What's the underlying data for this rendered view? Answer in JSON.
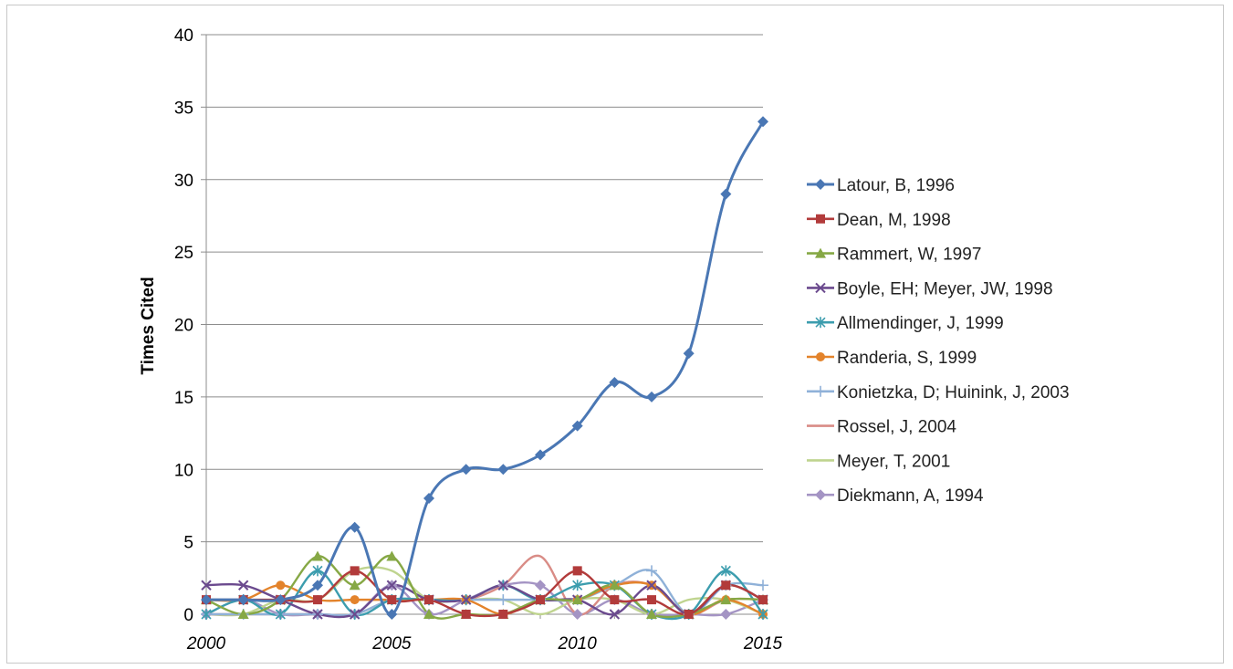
{
  "chart_data": {
    "type": "line",
    "title": "",
    "xlabel": "",
    "ylabel": "Times Cited",
    "x": [
      2000,
      2001,
      2002,
      2003,
      2004,
      2005,
      2006,
      2007,
      2008,
      2009,
      2010,
      2011,
      2012,
      2013,
      2014,
      2015
    ],
    "xlim": [
      2000,
      2015
    ],
    "ylim": [
      0,
      40
    ],
    "x_ticks": [
      "2000",
      "2005",
      "2010",
      "2015"
    ],
    "y_ticks": [
      "0",
      "5",
      "10",
      "15",
      "20",
      "25",
      "30",
      "35",
      "40"
    ],
    "grid": "horizontal",
    "legend_position": "right",
    "series": [
      {
        "name": "Latour, B, 1996",
        "color": "#4a77b4",
        "marker": "diamond",
        "values": [
          1,
          1,
          1,
          2,
          6,
          0,
          8,
          10,
          10,
          11,
          13,
          16,
          15,
          18,
          29,
          34
        ]
      },
      {
        "name": "Dean, M, 1998",
        "color": "#b23b3b",
        "marker": "square",
        "values": [
          1,
          1,
          1,
          1,
          3,
          1,
          1,
          0,
          0,
          1,
          3,
          1,
          1,
          0,
          2,
          1
        ]
      },
      {
        "name": "Rammert, W, 1997",
        "color": "#86a845",
        "marker": "triangle",
        "values": [
          1,
          0,
          1,
          4,
          2,
          4,
          0,
          0,
          0,
          1,
          1,
          2,
          0,
          0,
          1,
          1
        ]
      },
      {
        "name": "Boyle, EH; Meyer, JW, 1998",
        "color": "#6b4a8e",
        "marker": "x",
        "values": [
          2,
          2,
          1,
          0,
          0,
          2,
          1,
          1,
          2,
          1,
          1,
          0,
          2,
          0,
          2,
          1
        ]
      },
      {
        "name": "Allmendinger, J, 1999",
        "color": "#3c9dae",
        "marker": "star",
        "values": [
          0,
          1,
          0,
          3,
          0,
          1,
          1,
          1,
          2,
          1,
          2,
          2,
          0,
          0,
          3,
          0
        ]
      },
      {
        "name": "Randeria, S, 1999",
        "color": "#e3832b",
        "marker": "circle",
        "values": [
          1,
          1,
          2,
          1,
          1,
          1,
          1,
          1,
          0,
          1,
          1,
          2,
          2,
          0,
          1,
          0
        ]
      },
      {
        "name": "Konietzka, D; Huinink, J, 2003",
        "color": "#8fb1d8",
        "marker": "plus",
        "values": [
          0,
          0,
          0,
          0,
          0,
          1,
          1,
          1,
          1,
          1,
          1,
          2,
          3,
          0,
          2,
          2
        ]
      },
      {
        "name": "Rossel, J, 2004",
        "color": "#d98c86",
        "marker": "none",
        "values": [
          0,
          0,
          0,
          0,
          0,
          1,
          1,
          1,
          2,
          4,
          0,
          2,
          2,
          0,
          1,
          1
        ]
      },
      {
        "name": "Meyer, T, 2001",
        "color": "#bfd48f",
        "marker": "none",
        "values": [
          0,
          0,
          1,
          1,
          3,
          3,
          1,
          1,
          1,
          0,
          1,
          1,
          0,
          1,
          1,
          0
        ]
      },
      {
        "name": "Diekmann, A, 1994",
        "color": "#a494c4",
        "marker": "diamond",
        "values": [
          0,
          1,
          0,
          0,
          0,
          2,
          0,
          1,
          2,
          2,
          0,
          1,
          0,
          0,
          0,
          1
        ]
      }
    ]
  }
}
